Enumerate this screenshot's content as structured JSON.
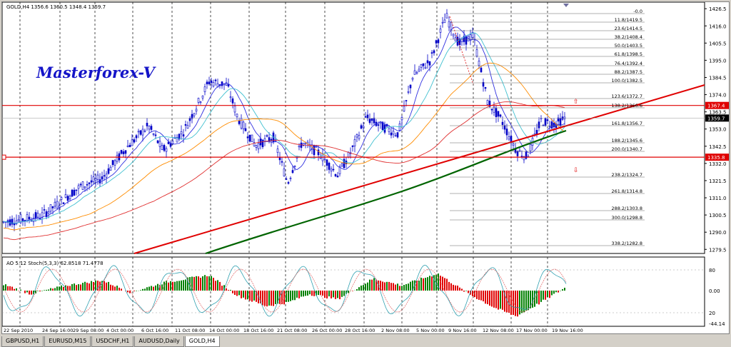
{
  "chart_header": {
    "symbol_info": "GOLD,H4  1356.6 1360.5 1348.4 1359.7"
  },
  "watermark": "Masterforex-V",
  "indicator_header": "AO 5.12  Stoch(5,3,3) 62.8518 71.4778",
  "price_axis": {
    "ticks": [
      "1426.5",
      "1416.0",
      "1405.5",
      "1395.0",
      "1384.5",
      "1374.0",
      "1363.5",
      "1353.0",
      "1342.5",
      "1332.0",
      "1321.5",
      "1311.0",
      "1300.5",
      "1290.0",
      "1279.5"
    ],
    "current_price": "1359.7",
    "level_upper": "1367.4",
    "level_lower": "1335.8"
  },
  "indicator_axis": {
    "ticks": [
      "80",
      "20",
      "0.00",
      "-44.14"
    ]
  },
  "time_axis": {
    "ticks": [
      "22 Sep 2010",
      "24 Sep 16:00",
      "29 Sep 08:00",
      "4 Oct 00:00",
      "6 Oct 16:00",
      "11 Oct 08:00",
      "14 Oct 00:00",
      "18 Oct 16:00",
      "21 Oct 08:00",
      "26 Oct 00:00",
      "28 Oct 16:00",
      "2 Nov 08:00",
      "5 Nov 00:00",
      "9 Nov 16:00",
      "12 Nov 08:00",
      "17 Nov 00:00",
      "19 Nov 16:00"
    ]
  },
  "fibo_levels": [
    "-0.0",
    "11.8/1419.5",
    "23.6/1414.5",
    "38.2/1408.4",
    "50.0/1403.5",
    "61.8/1398.5",
    "76.4/1392.4",
    "88.2/1387.5",
    "100.0/1382.5",
    "123.6/1372.7",
    "138.2/1366.6",
    "161.8/1356.7",
    "188.2/1345.6",
    "200.0/1340.7",
    "238.2/1324.7",
    "261.8/1314.8",
    "288.2/1303.8",
    "300.0/1298.8",
    "338.2/1282.8"
  ],
  "tabs": [
    {
      "label": "GBPUSD,H1",
      "active": false
    },
    {
      "label": "EURUSD,M15",
      "active": false
    },
    {
      "label": "USDCHF,H1",
      "active": false
    },
    {
      "label": "AUDUSD,Daily",
      "active": false
    },
    {
      "label": "GOLD,H4",
      "active": true
    }
  ],
  "colors": {
    "candle": "#0000c8",
    "level_line": "#e00000",
    "trend_line": "#e00000",
    "ma_slow": "#006400",
    "ma_mid": "#ff8c00",
    "ma_red": "#e03030",
    "ma_blue": "#3030e0",
    "ma_cyan": "#40c0d0",
    "ao_up": "#008000",
    "ao_down": "#e00000"
  }
}
